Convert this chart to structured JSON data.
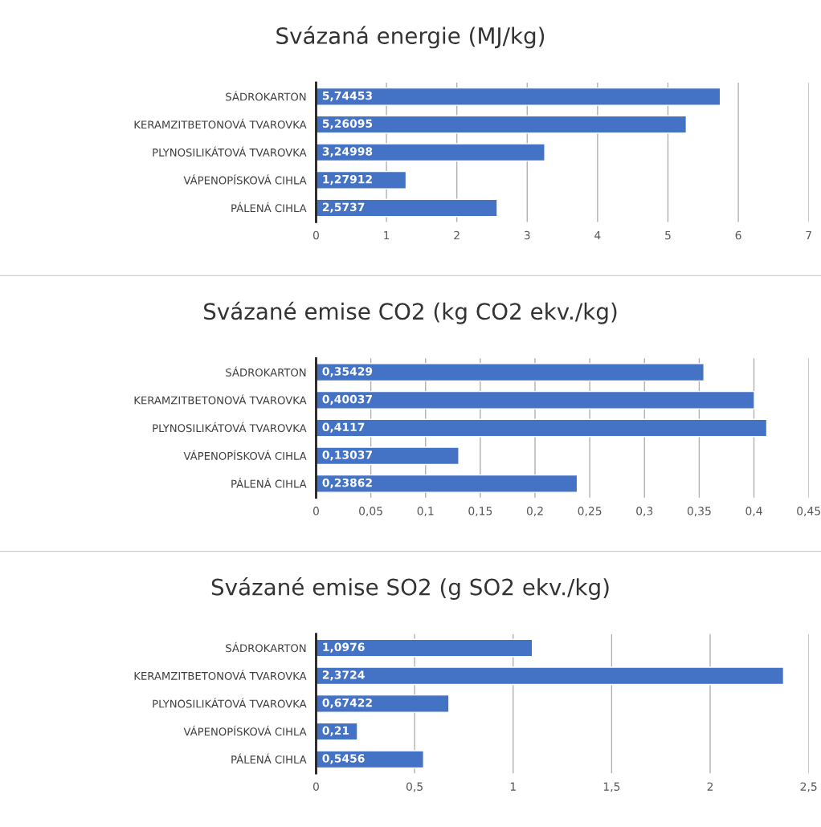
{
  "chart_data": [
    {
      "type": "bar",
      "orientation": "horizontal",
      "title": "Svázaná energie (MJ/kg)",
      "categories": [
        "SÁDROKARTON",
        "KERAMZITBETONOVÁ TVAROVKA",
        "PLYNOSILIKÁTOVÁ TVAROVKA",
        "VÁPENOPÍSKOVÁ CIHLA",
        "PÁLENÁ CIHLA"
      ],
      "values": [
        5.74453,
        5.26095,
        3.24998,
        1.27912,
        2.5737
      ],
      "value_labels": [
        "5,74453",
        "5,26095",
        "3,24998",
        "1,27912",
        "2,5737"
      ],
      "color": "#4472c4",
      "xlim": [
        0,
        7
      ],
      "xticks": [
        0,
        1,
        2,
        3,
        4,
        5,
        6,
        7
      ],
      "grid": "x",
      "legend": false
    },
    {
      "type": "bar",
      "orientation": "horizontal",
      "title": "Svázané emise CO2 (kg CO2 ekv./kg)",
      "categories": [
        "SÁDROKARTON",
        "KERAMZITBETONOVÁ TVAROVKA",
        "PLYNOSILIKÁTOVÁ TVAROVKA",
        "VÁPENOPÍSKOVÁ CIHLA",
        "PÁLENÁ CIHLA"
      ],
      "values": [
        0.35429,
        0.40037,
        0.4117,
        0.13037,
        0.23862
      ],
      "value_labels": [
        "0,35429",
        "0,40037",
        "0,4117",
        "0,13037",
        "0,23862"
      ],
      "color": "#4472c4",
      "xlim": [
        0,
        0.45
      ],
      "xticks": [
        0,
        {
          "value": 0.05,
          "label": "0,05"
        },
        {
          "value": 0.1,
          "label": "0,1"
        },
        {
          "value": 0.15,
          "label": "0,15"
        },
        {
          "value": 0.2,
          "label": "0,2"
        },
        {
          "value": 0.25,
          "label": "0,25"
        },
        {
          "value": 0.3,
          "label": "0,3"
        },
        {
          "value": 0.35,
          "label": "0,35"
        },
        {
          "value": 0.4,
          "label": "0,4"
        },
        {
          "value": 0.45,
          "label": "0,45"
        }
      ],
      "grid": "x",
      "legend": false
    },
    {
      "type": "bar",
      "orientation": "horizontal",
      "title": "Svázané emise SO2 (g SO2 ekv./kg)",
      "categories": [
        "SÁDROKARTON",
        "KERAMZITBETONOVÁ TVAROVKA",
        "PLYNOSILIKÁTOVÁ TVAROVKA",
        "VÁPENOPÍSKOVÁ CIHLA",
        "PÁLENÁ CIHLA"
      ],
      "values": [
        1.0976,
        2.3724,
        0.67422,
        0.21,
        0.5456
      ],
      "value_labels": [
        "1,0976",
        "2,3724",
        "0,67422",
        "0,21",
        "0,5456"
      ],
      "color": "#4472c4",
      "xlim": [
        0,
        2.5
      ],
      "xticks": [
        0,
        {
          "value": 0.5,
          "label": "0,5"
        },
        1,
        {
          "value": 1.5,
          "label": "1,5"
        },
        2,
        {
          "value": 2.5,
          "label": "2,5"
        }
      ],
      "grid": "x",
      "legend": false
    }
  ]
}
